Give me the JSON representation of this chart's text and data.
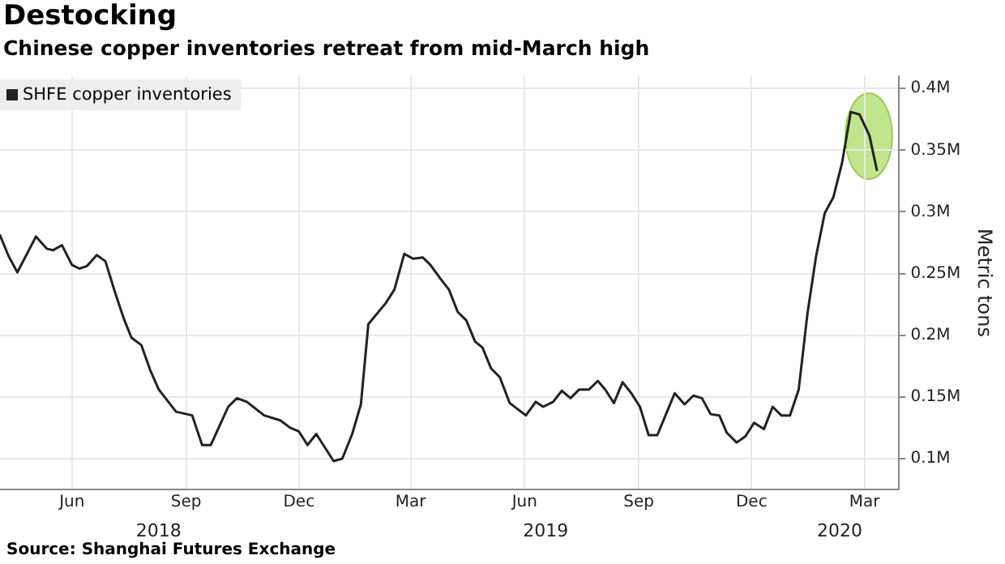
{
  "chart_data": {
    "type": "line",
    "title": "Destocking",
    "subtitle": "Chinese copper inventories retreat from mid-March high",
    "ylabel": "Metric tons",
    "annotations": [
      "Source: Shanghai Futures Exchange"
    ],
    "x": [
      "2018-04-18",
      "2018-04-25",
      "2018-05-02",
      "2018-05-17",
      "2018-05-26",
      "2018-05-31",
      "2018-06-07",
      "2018-06-15",
      "2018-06-21",
      "2018-06-27",
      "2018-07-05",
      "2018-07-12",
      "2018-07-20",
      "2018-07-27",
      "2018-08-02",
      "2018-08-10",
      "2018-08-17",
      "2018-08-24",
      "2018-09-07",
      "2018-09-20",
      "2018-09-28",
      "2018-10-05",
      "2018-10-19",
      "2018-10-26",
      "2018-11-03",
      "2018-11-17",
      "2018-11-30",
      "2018-12-08",
      "2018-12-15",
      "2018-12-22",
      "2018-12-29",
      "2019-01-12",
      "2019-01-19",
      "2019-01-27",
      "2019-02-03",
      "2019-02-09",
      "2019-02-23",
      "2019-03-02",
      "2019-03-10",
      "2019-03-17",
      "2019-03-25",
      "2019-03-31",
      "2019-04-08",
      "2019-04-15",
      "2019-04-22",
      "2019-04-29",
      "2019-05-06",
      "2019-05-12",
      "2019-05-19",
      "2019-05-26",
      "2019-06-03",
      "2019-06-16",
      "2019-06-24",
      "2019-06-30",
      "2019-07-08",
      "2019-07-15",
      "2019-07-22",
      "2019-07-29",
      "2019-08-06",
      "2019-08-13",
      "2019-08-19",
      "2019-08-26",
      "2019-09-02",
      "2019-09-09",
      "2019-09-16",
      "2019-09-23",
      "2019-09-30",
      "2019-10-14",
      "2019-10-22",
      "2019-10-29",
      "2019-11-05",
      "2019-11-12",
      "2019-11-19",
      "2019-11-25",
      "2019-12-03",
      "2019-12-10",
      "2019-12-17",
      "2019-12-25",
      "2020-01-01",
      "2020-01-08",
      "2020-01-15",
      "2020-01-22",
      "2020-01-29",
      "2020-02-05",
      "2020-02-12",
      "2020-02-19",
      "2020-02-26",
      "2020-03-04",
      "2020-03-11",
      "2020-03-19",
      "2020-03-25"
    ],
    "series": [
      {
        "name": "SHFE copper inventories",
        "color": "#222222",
        "values": [
          281000,
          264000,
          251000,
          280000,
          270000,
          269000,
          273000,
          257000,
          254000,
          256000,
          265000,
          260000,
          234000,
          213000,
          198000,
          192000,
          172000,
          156000,
          138000,
          135000,
          111000,
          111000,
          142000,
          149000,
          146000,
          135000,
          131000,
          125000,
          122000,
          111000,
          120000,
          98000,
          100000,
          120000,
          144000,
          209000,
          226000,
          237000,
          266000,
          262000,
          263000,
          257000,
          246000,
          237000,
          219000,
          212000,
          195000,
          190000,
          173000,
          166000,
          145000,
          135000,
          146000,
          142000,
          146000,
          155000,
          149000,
          156000,
          156000,
          163000,
          156000,
          145000,
          162000,
          153000,
          142000,
          119000,
          119000,
          153000,
          144000,
          151000,
          149000,
          136000,
          135000,
          121000,
          113000,
          118000,
          129000,
          124000,
          142000,
          135000,
          135000,
          156000,
          217000,
          264000,
          299000,
          312000,
          340000,
          381000,
          379000,
          362000,
          334000
        ]
      }
    ],
    "xlim": [
      "2018-04-18",
      "2020-04-12"
    ],
    "xticks": [
      {
        "value": "2018-06-15",
        "label": "Jun"
      },
      {
        "value": "2018-09-15",
        "label": "Sep"
      },
      {
        "value": "2018-12-15",
        "label": "Dec"
      },
      {
        "value": "2019-03-15",
        "label": "Mar"
      },
      {
        "value": "2019-06-15",
        "label": "Jun"
      },
      {
        "value": "2019-09-15",
        "label": "Sep"
      },
      {
        "value": "2019-12-15",
        "label": "Dec"
      },
      {
        "value": "2020-03-15",
        "label": "Mar"
      }
    ],
    "x2lim": [
      "2018-04-18",
      "2020-04-12"
    ],
    "x2ticks": [
      {
        "value": "2018-08-24",
        "label": "2018"
      },
      {
        "value": "2019-07-02",
        "label": "2019"
      },
      {
        "value": "2020-02-24",
        "label": "2020"
      }
    ],
    "ylim": [
      75000,
      410000
    ],
    "yticks": [
      {
        "value": 100000,
        "label": "0.1M"
      },
      {
        "value": 150000,
        "label": "0.15M"
      },
      {
        "value": 200000,
        "label": "0.2M"
      },
      {
        "value": 250000,
        "label": "0.25M"
      },
      {
        "value": 300000,
        "label": "0.3M"
      },
      {
        "value": 350000,
        "label": "0.35M"
      },
      {
        "value": 400000,
        "label": "0.4M"
      }
    ],
    "grid": true,
    "legend": "top left",
    "marker": "none",
    "line_style": "solid"
  }
}
